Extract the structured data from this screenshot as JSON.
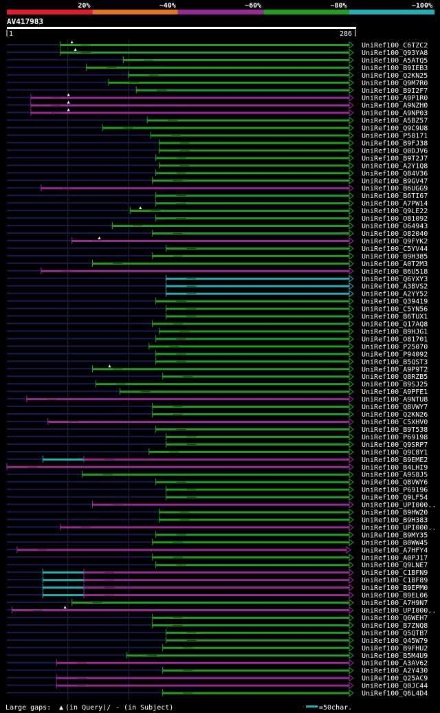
{
  "query": {
    "id": "AV417983",
    "start": "1",
    "end": "286",
    "length": 286
  },
  "legend": {
    "segments": [
      {
        "label": "20%",
        "color": "#e81a2e"
      },
      {
        "label": "~40%",
        "color": "#e8731e"
      },
      {
        "label": "~60%",
        "color": "#9a2a9a"
      },
      {
        "label": "~80%",
        "color": "#1fa01f"
      },
      {
        "label": "~100%",
        "color": "#20b0b8"
      }
    ],
    "large_gaps_text": "Large gaps:",
    "query_gap_text": "(in Query)/",
    "subject_gap_text": "- (in Subject)",
    "scale_text": "=50char."
  },
  "colors": {
    "green": "#1fa01f",
    "purple": "#9a2a9a",
    "cyan": "#20b0b8",
    "navy": "#1a1a5a",
    "grid": "#1e2a3a",
    "gap": "#0a4a0a",
    "pgap": "#5a1a5a"
  },
  "hits": [
    {
      "name": "UniRef100_C6TZC2",
      "start": 0.156,
      "segs": [
        [
          "green",
          0.156,
          1.0
        ]
      ],
      "marks": [
        0.19
      ]
    },
    {
      "name": "UniRef100_Q93YA8",
      "start": 0.156,
      "segs": [
        [
          "green",
          0.156,
          1.0
        ]
      ],
      "marks": [
        0.2
      ]
    },
    {
      "name": "UniRef100_A5ATQ5",
      "start": 0.34,
      "segs": [
        [
          "green",
          0.34,
          1.0
        ]
      ],
      "marks": []
    },
    {
      "name": "UniRef100_B9IEB3",
      "start": 0.232,
      "segs": [
        [
          "green",
          0.232,
          1.0
        ]
      ],
      "marks": []
    },
    {
      "name": "UniRef100_Q2KN25",
      "start": 0.355,
      "segs": [
        [
          "green",
          0.355,
          1.0
        ]
      ],
      "marks": []
    },
    {
      "name": "UniRef100_Q9M7R0",
      "start": 0.297,
      "segs": [
        [
          "green",
          0.297,
          1.0
        ]
      ],
      "marks": []
    },
    {
      "name": "UniRef100_B9I2F7",
      "start": 0.378,
      "segs": [
        [
          "green",
          0.378,
          1.0
        ]
      ],
      "marks": []
    },
    {
      "name": "UniRef100_A9P1R0",
      "start": 0.07,
      "segs": [
        [
          "purple",
          0.07,
          1.0
        ]
      ],
      "marks": [
        0.18
      ]
    },
    {
      "name": "UniRef100_A9NZH0",
      "start": 0.07,
      "segs": [
        [
          "purple",
          0.07,
          1.0
        ]
      ],
      "marks": [
        0.18
      ]
    },
    {
      "name": "UniRef100_A9NP03",
      "start": 0.07,
      "segs": [
        [
          "purple",
          0.07,
          1.0
        ]
      ],
      "marks": [
        0.18
      ]
    },
    {
      "name": "UniRef100_A5BZ57",
      "start": 0.41,
      "segs": [
        [
          "green",
          0.41,
          1.0
        ]
      ],
      "marks": []
    },
    {
      "name": "UniRef100_Q9C9U8",
      "start": 0.28,
      "segs": [
        [
          "green",
          0.28,
          1.0
        ]
      ],
      "marks": []
    },
    {
      "name": "UniRef100_P58171",
      "start": 0.42,
      "segs": [
        [
          "green",
          0.42,
          1.0
        ]
      ],
      "marks": []
    },
    {
      "name": "UniRef100_B9FJ38",
      "start": 0.445,
      "segs": [
        [
          "green",
          0.445,
          1.0
        ]
      ],
      "marks": []
    },
    {
      "name": "UniRef100_Q0DJV6",
      "start": 0.445,
      "segs": [
        [
          "green",
          0.445,
          1.0
        ]
      ],
      "marks": []
    },
    {
      "name": "UniRef100_B9T2J7",
      "start": 0.435,
      "segs": [
        [
          "green",
          0.435,
          1.0
        ]
      ],
      "marks": []
    },
    {
      "name": "UniRef100_A2Y1Q8",
      "start": 0.445,
      "segs": [
        [
          "green",
          0.445,
          1.0
        ]
      ],
      "marks": []
    },
    {
      "name": "UniRef100_Q84V36",
      "start": 0.435,
      "segs": [
        [
          "green",
          0.435,
          1.0
        ]
      ],
      "marks": []
    },
    {
      "name": "UniRef100_B9GV47",
      "start": 0.425,
      "segs": [
        [
          "green",
          0.425,
          1.0
        ]
      ],
      "marks": []
    },
    {
      "name": "UniRef100_B6UGG9",
      "start": 0.1,
      "segs": [
        [
          "purple",
          0.1,
          1.0
        ]
      ],
      "marks": []
    },
    {
      "name": "UniRef100_B6TI67",
      "start": 0.435,
      "segs": [
        [
          "green",
          0.435,
          1.0
        ]
      ],
      "marks": []
    },
    {
      "name": "UniRef100_A7PW14",
      "start": 0.435,
      "segs": [
        [
          "green",
          0.435,
          1.0
        ]
      ],
      "marks": []
    },
    {
      "name": "UniRef100_Q9LE22",
      "start": 0.36,
      "segs": [
        [
          "green",
          0.36,
          1.0
        ]
      ],
      "marks": [
        0.39
      ]
    },
    {
      "name": "UniRef100_O81092",
      "start": 0.435,
      "segs": [
        [
          "green",
          0.435,
          1.0
        ]
      ],
      "marks": []
    },
    {
      "name": "UniRef100_O64943",
      "start": 0.308,
      "segs": [
        [
          "green",
          0.308,
          1.0
        ]
      ],
      "marks": []
    },
    {
      "name": "UniRef100_O82040",
      "start": 0.425,
      "segs": [
        [
          "green",
          0.425,
          1.0
        ]
      ],
      "marks": []
    },
    {
      "name": "UniRef100_Q9FYK2",
      "start": 0.19,
      "segs": [
        [
          "purple",
          0.19,
          1.0
        ]
      ],
      "marks": [
        0.27
      ]
    },
    {
      "name": "UniRef100_C5YV44",
      "start": 0.465,
      "segs": [
        [
          "green",
          0.465,
          1.0
        ]
      ],
      "marks": []
    },
    {
      "name": "UniRef100_B9H385",
      "start": 0.425,
      "segs": [
        [
          "green",
          0.425,
          1.0
        ]
      ],
      "marks": []
    },
    {
      "name": "UniRef100_A0T2M3",
      "start": 0.25,
      "segs": [
        [
          "green",
          0.25,
          1.0
        ]
      ],
      "marks": []
    },
    {
      "name": "UniRef100_B6U518",
      "start": 0.1,
      "segs": [
        [
          "purple",
          0.1,
          1.0
        ]
      ],
      "marks": []
    },
    {
      "name": "UniRef100_Q6YXY3",
      "start": 0.465,
      "segs": [
        [
          "cyan",
          0.465,
          1.0
        ]
      ],
      "marks": []
    },
    {
      "name": "UniRef100_A3BVS2",
      "start": 0.465,
      "segs": [
        [
          "cyan",
          0.465,
          1.0
        ]
      ],
      "marks": []
    },
    {
      "name": "UniRef100_A2YY52",
      "start": 0.465,
      "segs": [
        [
          "cyan",
          0.465,
          1.0
        ]
      ],
      "marks": []
    },
    {
      "name": "UniRef100_Q39419",
      "start": 0.435,
      "segs": [
        [
          "green",
          0.435,
          1.0
        ]
      ],
      "marks": []
    },
    {
      "name": "UniRef100_C5YN56",
      "start": 0.465,
      "segs": [
        [
          "green",
          0.465,
          1.0
        ]
      ],
      "marks": []
    },
    {
      "name": "UniRef100_B6TUX1",
      "start": 0.465,
      "segs": [
        [
          "green",
          0.465,
          1.0
        ]
      ],
      "marks": []
    },
    {
      "name": "UniRef100_Q17AQ8",
      "start": 0.425,
      "segs": [
        [
          "green",
          0.425,
          1.0
        ]
      ],
      "marks": []
    },
    {
      "name": "UniRef100_B9HJG1",
      "start": 0.445,
      "segs": [
        [
          "green",
          0.445,
          1.0
        ]
      ],
      "marks": []
    },
    {
      "name": "UniRef100_O81701",
      "start": 0.435,
      "segs": [
        [
          "green",
          0.435,
          1.0
        ]
      ],
      "marks": []
    },
    {
      "name": "UniRef100_P25070",
      "start": 0.415,
      "segs": [
        [
          "green",
          0.415,
          1.0
        ]
      ],
      "marks": []
    },
    {
      "name": "UniRef100_P94092",
      "start": 0.435,
      "segs": [
        [
          "green",
          0.435,
          1.0
        ]
      ],
      "marks": []
    },
    {
      "name": "UniRef100_B5QST3",
      "start": 0.435,
      "segs": [
        [
          "green",
          0.435,
          1.0
        ]
      ],
      "marks": []
    },
    {
      "name": "UniRef100_A9P9T2",
      "start": 0.25,
      "segs": [
        [
          "green",
          0.25,
          1.0
        ]
      ],
      "marks": [
        0.3
      ]
    },
    {
      "name": "UniRef100_Q8RZB5",
      "start": 0.455,
      "segs": [
        [
          "green",
          0.455,
          1.0
        ]
      ],
      "marks": []
    },
    {
      "name": "UniRef100_B9SJ25",
      "start": 0.26,
      "segs": [
        [
          "green",
          0.26,
          1.0
        ]
      ],
      "marks": []
    },
    {
      "name": "UniRef100_A9PFE1",
      "start": 0.33,
      "segs": [
        [
          "green",
          0.33,
          1.0
        ]
      ],
      "marks": []
    },
    {
      "name": "UniRef100_A9NTU8",
      "start": 0.058,
      "segs": [
        [
          "purple",
          0.058,
          1.0
        ]
      ],
      "marks": []
    },
    {
      "name": "UniRef100_Q8VWY7",
      "start": 0.425,
      "segs": [
        [
          "green",
          0.425,
          1.0
        ]
      ],
      "marks": []
    },
    {
      "name": "UniRef100_Q2KN26",
      "start": 0.425,
      "segs": [
        [
          "green",
          0.425,
          1.0
        ]
      ],
      "marks": []
    },
    {
      "name": "UniRef100_C5XHV0",
      "start": 0.12,
      "segs": [
        [
          "purple",
          0.12,
          1.0
        ]
      ],
      "marks": []
    },
    {
      "name": "UniRef100_B9T538",
      "start": 0.435,
      "segs": [
        [
          "green",
          0.435,
          1.0
        ]
      ],
      "marks": []
    },
    {
      "name": "UniRef100_P69198",
      "start": 0.465,
      "segs": [
        [
          "green",
          0.465,
          1.0
        ]
      ],
      "marks": []
    },
    {
      "name": "UniRef100_Q9SRP7",
      "start": 0.465,
      "segs": [
        [
          "green",
          0.465,
          1.0
        ]
      ],
      "marks": []
    },
    {
      "name": "UniRef100_Q9C8Y1",
      "start": 0.415,
      "segs": [
        [
          "green",
          0.415,
          1.0
        ]
      ],
      "marks": []
    },
    {
      "name": "UniRef100_B9EME2",
      "start": 0.105,
      "segs": [
        [
          "cyan",
          0.105,
          0.225
        ],
        [
          "purple",
          0.225,
          1.0
        ]
      ],
      "marks": []
    },
    {
      "name": "UniRef100_B4LHI9",
      "start": 0.0,
      "segs": [
        [
          "purple",
          0.0,
          1.0
        ]
      ],
      "marks": []
    },
    {
      "name": "UniRef100_A9S8J5",
      "start": 0.22,
      "segs": [
        [
          "green",
          0.22,
          1.0
        ]
      ],
      "marks": []
    },
    {
      "name": "UniRef100_Q8VWY6",
      "start": 0.435,
      "segs": [
        [
          "green",
          0.435,
          1.0
        ]
      ],
      "marks": []
    },
    {
      "name": "UniRef100_P69196",
      "start": 0.465,
      "segs": [
        [
          "green",
          0.465,
          1.0
        ]
      ],
      "marks": []
    },
    {
      "name": "UniRef100_Q9LF54",
      "start": 0.465,
      "segs": [
        [
          "green",
          0.465,
          1.0
        ]
      ],
      "marks": []
    },
    {
      "name": "UniRef100_UPI000..",
      "start": 0.25,
      "segs": [
        [
          "purple",
          0.25,
          1.0
        ]
      ],
      "marks": []
    },
    {
      "name": "UniRef100_B9HW20",
      "start": 0.445,
      "segs": [
        [
          "green",
          0.445,
          1.0
        ]
      ],
      "marks": []
    },
    {
      "name": "UniRef100_B9H383",
      "start": 0.445,
      "segs": [
        [
          "green",
          0.445,
          1.0
        ]
      ],
      "marks": []
    },
    {
      "name": "UniRef100_UPI000..",
      "start": 0.156,
      "segs": [
        [
          "purple",
          0.156,
          1.0
        ]
      ],
      "marks": []
    },
    {
      "name": "UniRef100_B9MY35",
      "start": 0.435,
      "segs": [
        [
          "green",
          0.435,
          1.0
        ]
      ],
      "marks": []
    },
    {
      "name": "UniRef100_B0WW45",
      "start": 0.425,
      "segs": [
        [
          "green",
          0.425,
          1.0
        ]
      ],
      "marks": []
    },
    {
      "name": "UniRef100_A7HFY4",
      "start": 0.03,
      "segs": [
        [
          "purple",
          0.03,
          0.992
        ]
      ],
      "marks": []
    },
    {
      "name": "UniRef100_A0PJ17",
      "start": 0.425,
      "segs": [
        [
          "green",
          0.425,
          1.0
        ]
      ],
      "marks": []
    },
    {
      "name": "UniRef100_Q9LNE7",
      "start": 0.435,
      "segs": [
        [
          "green",
          0.435,
          1.0
        ]
      ],
      "marks": []
    },
    {
      "name": "UniRef100_C1BFN9",
      "start": 0.105,
      "segs": [
        [
          "cyan",
          0.105,
          0.225
        ],
        [
          "purple",
          0.225,
          1.0
        ]
      ],
      "marks": []
    },
    {
      "name": "UniRef100_C1BF89",
      "start": 0.105,
      "segs": [
        [
          "cyan",
          0.105,
          0.225
        ],
        [
          "purple",
          0.225,
          1.0
        ]
      ],
      "marks": []
    },
    {
      "name": "UniRef100_B9EPM0",
      "start": 0.105,
      "segs": [
        [
          "cyan",
          0.105,
          0.225
        ],
        [
          "purple",
          0.225,
          1.0
        ]
      ],
      "marks": []
    },
    {
      "name": "UniRef100_B9EL06",
      "start": 0.105,
      "segs": [
        [
          "cyan",
          0.105,
          0.225
        ],
        [
          "purple",
          0.225,
          1.0
        ]
      ],
      "marks": []
    },
    {
      "name": "UniRef100_A7H9N7",
      "start": 0.19,
      "segs": [
        [
          "green",
          0.19,
          1.0
        ]
      ],
      "marks": []
    },
    {
      "name": "UniRef100_UPI000..",
      "start": 0.015,
      "segs": [
        [
          "purple",
          0.015,
          1.0
        ]
      ],
      "marks": [
        0.17
      ]
    },
    {
      "name": "UniRef100_Q6WEH7",
      "start": 0.425,
      "segs": [
        [
          "green",
          0.425,
          1.0
        ]
      ],
      "marks": []
    },
    {
      "name": "UniRef100_B7ZNQ8",
      "start": 0.425,
      "segs": [
        [
          "green",
          0.425,
          1.0
        ]
      ],
      "marks": []
    },
    {
      "name": "UniRef100_Q5QTB7",
      "start": 0.465,
      "segs": [
        [
          "green",
          0.465,
          1.0
        ]
      ],
      "marks": []
    },
    {
      "name": "UniRef100_Q45W79",
      "start": 0.465,
      "segs": [
        [
          "green",
          0.465,
          1.0
        ]
      ],
      "marks": []
    },
    {
      "name": "UniRef100_B9FHU2",
      "start": 0.455,
      "segs": [
        [
          "green",
          0.455,
          1.0
        ]
      ],
      "marks": []
    },
    {
      "name": "UniRef100_B5M4U9",
      "start": 0.35,
      "segs": [
        [
          "green",
          0.35,
          1.0
        ]
      ],
      "marks": []
    },
    {
      "name": "UniRef100_A3AV62",
      "start": 0.145,
      "segs": [
        [
          "purple",
          0.145,
          1.0
        ]
      ],
      "marks": []
    },
    {
      "name": "UniRef100_A2Y430",
      "start": 0.455,
      "segs": [
        [
          "green",
          0.455,
          1.0
        ]
      ],
      "marks": []
    },
    {
      "name": "UniRef100_Q25AC9",
      "start": 0.145,
      "segs": [
        [
          "purple",
          0.145,
          1.0
        ]
      ],
      "marks": []
    },
    {
      "name": "UniRef100_Q0JC44",
      "start": 0.145,
      "segs": [
        [
          "purple",
          0.145,
          1.0
        ]
      ],
      "marks": []
    },
    {
      "name": "UniRef100_Q6L4D4",
      "start": 0.455,
      "segs": [
        [
          "green",
          0.455,
          1.0
        ]
      ],
      "marks": []
    }
  ]
}
